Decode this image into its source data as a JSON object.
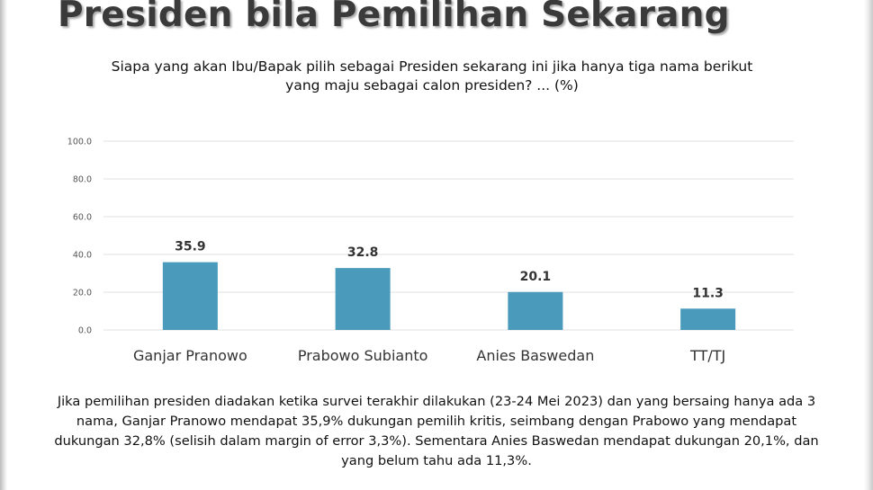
{
  "header": {
    "title": "Presiden bila Pemilihan Sekarang",
    "question_line1": "Siapa yang akan Ibu/Bapak pilih sebagai Presiden sekarang ini jika hanya tiga nama berikut",
    "question_line2": "yang maju sebagai calon presiden? ... (%)"
  },
  "chart_data": {
    "type": "bar",
    "categories": [
      "Ganjar Pranowo",
      "Prabowo Subianto",
      "Anies Baswedan",
      "TT/TJ"
    ],
    "values": [
      35.9,
      32.8,
      20.1,
      11.3
    ],
    "value_labels": [
      "35.9",
      "32.8",
      "20.1",
      "11.3"
    ],
    "yticks": [
      "0.0",
      "20.0",
      "40.0",
      "60.0",
      "80.0",
      "100.0"
    ],
    "ylim": [
      0,
      100
    ],
    "grid": true,
    "legend": "none",
    "bar_color": "#4a9bbb",
    "grid_color": "#e2e2e2"
  },
  "caption": {
    "text": "Jika pemilihan presiden diadakan ketika survei terakhir dilakukan (23-24 Mei 2023) dan yang bersaing hanya ada 3 nama, Ganjar Pranowo mendapat 35,9% dukungan pemilih kritis, seimbang dengan Prabowo yang mendapat dukungan 32,8% (selisih dalam margin of error 3,3%). Sementara Anies Baswedan mendapat dukungan 20,1%, dan yang belum tahu ada 11,3%."
  }
}
